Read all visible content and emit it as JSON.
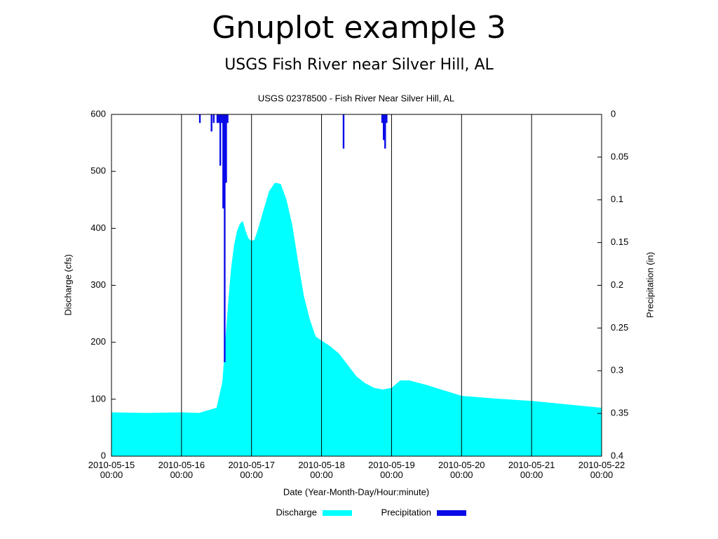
{
  "title": "Gnuplot example 3",
  "subtitle": "USGS Fish River near Silver Hill, AL",
  "chart_data": {
    "type": "area",
    "title": "USGS 02378500 - Fish River Near Silver Hill, AL",
    "x_label": "Date (Year-Month-Day/Hour:minute)",
    "y_label": "Discharge (cfs)",
    "y2_label": "Precipitation (in)",
    "xlim": [
      "2010-05-15\n00:00",
      "2010-05-22\n00:00"
    ],
    "xticks": [
      "2010-05-15\n00:00",
      "2010-05-16\n00:00",
      "2010-05-17\n00:00",
      "2010-05-18\n00:00",
      "2010-05-19\n00:00",
      "2010-05-20\n00:00",
      "2010-05-21\n00:00",
      "2010-05-22\n00:00"
    ],
    "ylim": [
      0,
      600
    ],
    "yticks": [
      0,
      100,
      200,
      300,
      400,
      500,
      600
    ],
    "y2lim": [
      0.4,
      0
    ],
    "y2ticks": [
      0,
      0.05,
      0.1,
      0.15,
      0.2,
      0.25,
      0.3,
      0.35,
      0.4
    ],
    "xgrid": true,
    "legend": "bottom",
    "series": [
      {
        "name": "Discharge",
        "color": "#00ffff",
        "type": "area",
        "x": [
          "2010-05-15 00:00",
          "2010-05-15 12:00",
          "2010-05-16 00:00",
          "2010-05-16 06:00",
          "2010-05-16 12:00",
          "2010-05-16 14:00",
          "2010-05-16 15:00",
          "2010-05-16 16:00",
          "2010-05-16 17:00",
          "2010-05-16 18:00",
          "2010-05-16 19:00",
          "2010-05-16 20:00",
          "2010-05-16 21:00",
          "2010-05-16 22:00",
          "2010-05-16 23:00",
          "2010-05-17 00:00",
          "2010-05-17 01:00",
          "2010-05-17 02:00",
          "2010-05-17 04:00",
          "2010-05-17 06:00",
          "2010-05-17 08:00",
          "2010-05-17 10:00",
          "2010-05-17 12:00",
          "2010-05-17 14:00",
          "2010-05-17 16:00",
          "2010-05-17 18:00",
          "2010-05-17 20:00",
          "2010-05-17 22:00",
          "2010-05-18 00:00",
          "2010-05-18 03:00",
          "2010-05-18 06:00",
          "2010-05-18 09:00",
          "2010-05-18 12:00",
          "2010-05-18 15:00",
          "2010-05-18 18:00",
          "2010-05-18 21:00",
          "2010-05-19 00:00",
          "2010-05-19 03:00",
          "2010-05-19 06:00",
          "2010-05-19 12:00",
          "2010-05-20 00:00",
          "2010-05-20 12:00",
          "2010-05-21 00:00",
          "2010-05-21 12:00",
          "2010-05-22 00:00"
        ],
        "values": [
          77,
          76,
          77,
          76,
          85,
          130,
          200,
          270,
          330,
          370,
          395,
          408,
          413,
          395,
          382,
          378,
          380,
          395,
          430,
          465,
          480,
          478,
          450,
          405,
          340,
          280,
          240,
          210,
          203,
          193,
          180,
          160,
          140,
          128,
          120,
          117,
          120,
          133,
          133,
          125,
          106,
          101,
          97,
          91,
          85
        ]
      },
      {
        "name": "Precipitation",
        "color": "#0a0ae8",
        "type": "bar",
        "axis": "y2",
        "x": [
          "2010-05-16 06:15",
          "2010-05-16 10:15",
          "2010-05-16 11:00",
          "2010-05-16 12:15",
          "2010-05-16 12:45",
          "2010-05-16 13:15",
          "2010-05-16 13:45",
          "2010-05-16 14:15",
          "2010-05-16 14:45",
          "2010-05-16 15:15",
          "2010-05-16 15:45",
          "2010-05-18 07:30",
          "2010-05-18 20:45",
          "2010-05-18 21:15",
          "2010-05-18 21:45",
          "2010-05-18 22:15"
        ],
        "values": [
          0.01,
          0.02,
          0.01,
          0.01,
          0.01,
          0.06,
          0.01,
          0.11,
          0.29,
          0.08,
          0.01,
          0.04,
          0.01,
          0.03,
          0.04,
          0.01
        ]
      }
    ]
  }
}
